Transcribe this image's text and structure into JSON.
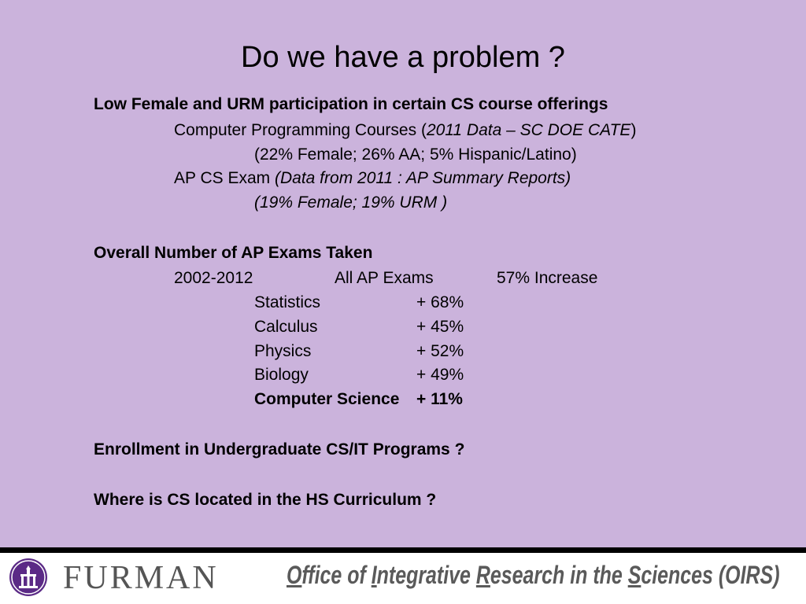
{
  "title": "Do we have a problem ?",
  "participation": {
    "heading": "Low Female and URM participation in certain CS course offerings",
    "courses_label": "Computer Programming Courses (",
    "courses_source": "2011 Data – SC DOE CATE",
    "courses_close": ")",
    "courses_stats": "(22% Female; 26% AA; 5% Hispanic/Latino)",
    "ap_label": "AP CS Exam ",
    "ap_source": "(Data from 2011 : AP Summary Reports)",
    "ap_stats": "(19% Female;  19% URM )"
  },
  "ap_exams": {
    "heading": "Overall Number of AP Exams Taken",
    "period": "2002-2012",
    "all_label": "All AP Exams",
    "all_value": "57% Increase",
    "subjects": [
      {
        "name": "Statistics",
        "change": "+ 68%"
      },
      {
        "name": "Calculus",
        "change": "+ 45%"
      },
      {
        "name": "Physics",
        "change": "+ 52%"
      },
      {
        "name": "Biology",
        "change": "+ 49%"
      },
      {
        "name": "Computer Science",
        "change": "+ 11%"
      }
    ]
  },
  "enrollment_question": "Enrollment in Undergraduate CS/IT Programs ?",
  "location_question": "Where is CS located in the HS Curriculum ?",
  "footer": {
    "brand": "FURMAN",
    "office_o": "O",
    "office_a": "ffice of ",
    "office_i": "I",
    "office_b": "ntegrative ",
    "office_r": "R",
    "office_c": "esearch in the ",
    "office_s": "S",
    "office_d": "ciences",
    "office_abbr": "(OIRS)",
    "seal_color": "#5b2a86"
  }
}
